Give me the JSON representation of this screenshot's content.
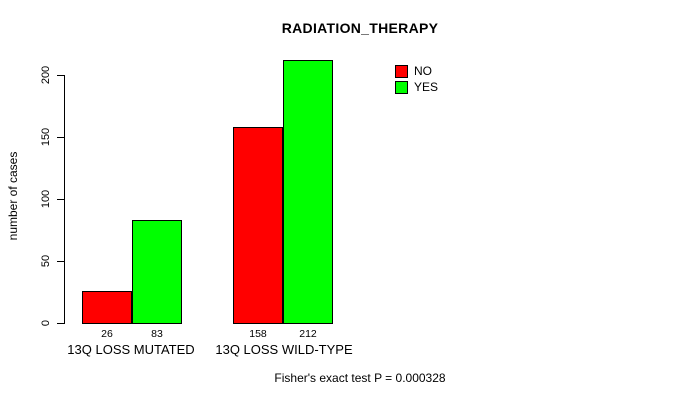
{
  "chart_data": {
    "type": "bar",
    "title": "RADIATION_THERAPY",
    "categories": [
      "13Q LOSS MUTATED",
      "13Q LOSS WILD-TYPE"
    ],
    "series": [
      {
        "name": "NO",
        "color": "#FF0000",
        "values": [
          26,
          158
        ]
      },
      {
        "name": "YES",
        "color": "#00FF00",
        "values": [
          83,
          212
        ]
      }
    ],
    "xlabel": "",
    "ylabel": "number of cases",
    "yticks": [
      0,
      50,
      100,
      150,
      200
    ],
    "ylim": [
      0,
      220
    ],
    "grid": false,
    "legend_position": "top-right",
    "bar_borders": "#000000",
    "annotation": "Fisher's exact test P = 0.000328"
  }
}
